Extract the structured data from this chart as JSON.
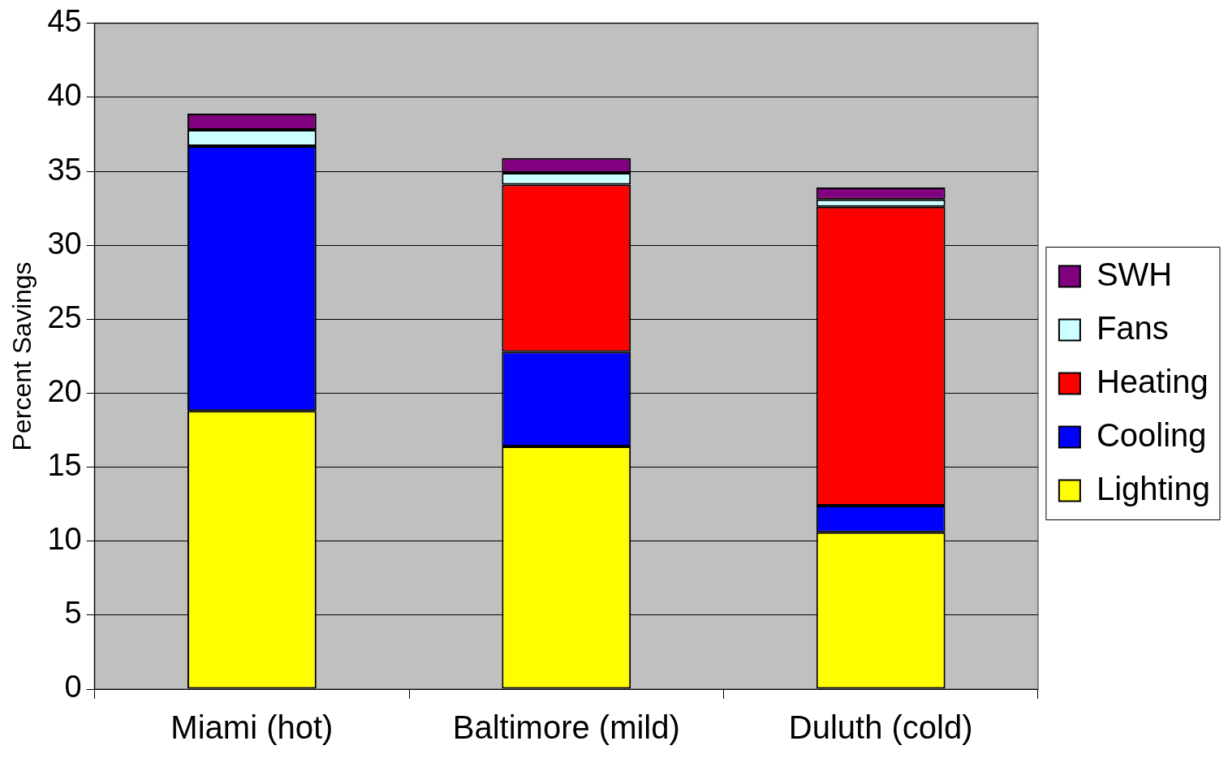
{
  "chart_data": {
    "type": "bar",
    "ylabel": "Percent Savings",
    "categories": [
      "Miami (hot)",
      "Baltimore (mild)",
      "Duluth (cold)"
    ],
    "stacked": true,
    "ylim": [
      0,
      45
    ],
    "yticks": [
      0,
      5,
      10,
      15,
      20,
      25,
      30,
      35,
      40,
      45
    ],
    "grid": "y",
    "legend": "right",
    "series": [
      {
        "name": "Lighting",
        "color": "#ffff00",
        "values": [
          18.8,
          16.4,
          10.6
        ]
      },
      {
        "name": "Cooling",
        "color": "#0000ff",
        "values": [
          17.9,
          6.4,
          1.8
        ]
      },
      {
        "name": "Heating",
        "color": "#ff0000",
        "values": [
          0,
          11.3,
          20.2
        ]
      },
      {
        "name": "Fans",
        "color": "#ccffff",
        "values": [
          1.1,
          0.8,
          0.5
        ]
      },
      {
        "name": "SWH",
        "color": "#800080",
        "values": [
          1.1,
          1.0,
          0.8
        ]
      }
    ]
  }
}
